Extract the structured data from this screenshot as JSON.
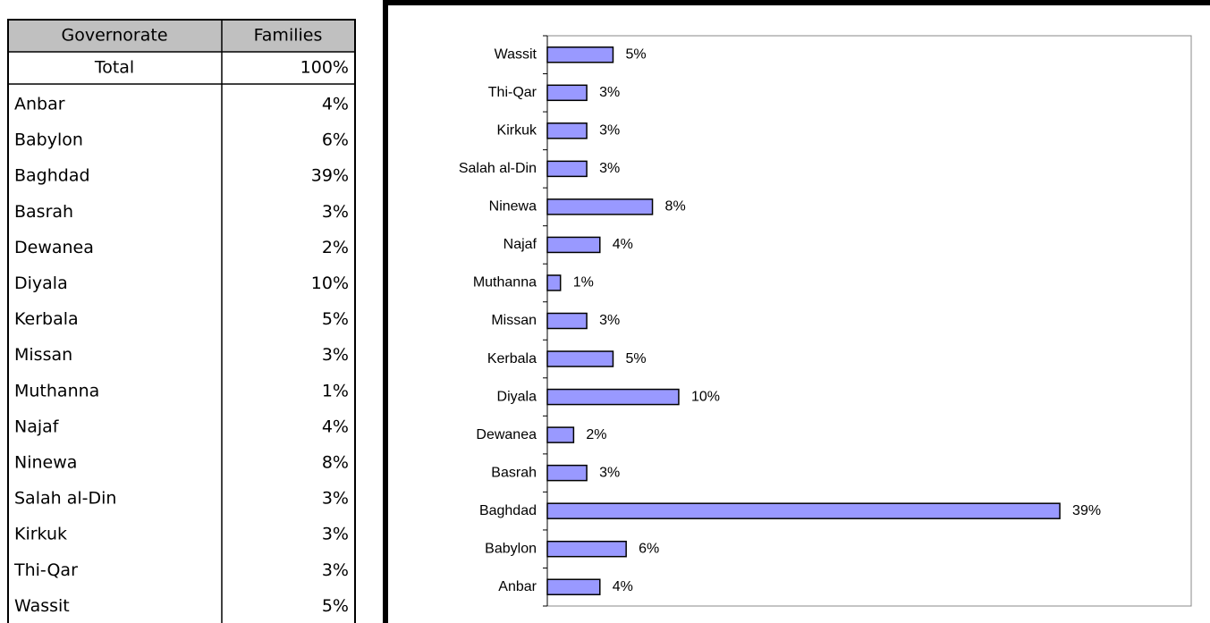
{
  "table": {
    "header": [
      "Governorate",
      "Families"
    ],
    "total": [
      "Total",
      "100%"
    ],
    "rows": [
      [
        "Anbar",
        "4%"
      ],
      [
        "Babylon",
        "6%"
      ],
      [
        "Baghdad",
        "39%"
      ],
      [
        "Basrah",
        "3%"
      ],
      [
        "Dewanea",
        "2%"
      ],
      [
        "Diyala",
        "10%"
      ],
      [
        "Kerbala",
        "5%"
      ],
      [
        "Missan",
        "3%"
      ],
      [
        "Muthanna",
        "1%"
      ],
      [
        "Najaf",
        "4%"
      ],
      [
        "Ninewa",
        "8%"
      ],
      [
        "Salah al-Din",
        "3%"
      ],
      [
        "Kirkuk",
        "3%"
      ],
      [
        "Thi-Qar",
        "3%"
      ],
      [
        "Wassit",
        "5%"
      ]
    ]
  },
  "chart_data": {
    "type": "bar",
    "orientation": "horizontal",
    "color": "#9999ff",
    "categories": [
      "Anbar",
      "Babylon",
      "Baghdad",
      "Basrah",
      "Dewanea",
      "Diyala",
      "Kerbala",
      "Missan",
      "Muthanna",
      "Najaf",
      "Ninewa",
      "Salah al-Din",
      "Kirkuk",
      "Thi-Qar",
      "Wassit"
    ],
    "values": [
      4,
      6,
      39,
      3,
      2,
      10,
      5,
      3,
      1,
      4,
      8,
      3,
      3,
      3,
      5
    ],
    "value_labels": [
      "4%",
      "6%",
      "39%",
      "3%",
      "2%",
      "10%",
      "5%",
      "3%",
      "1%",
      "4%",
      "8%",
      "3%",
      "3%",
      "3%",
      "5%"
    ],
    "xlim": [
      0,
      49
    ]
  }
}
